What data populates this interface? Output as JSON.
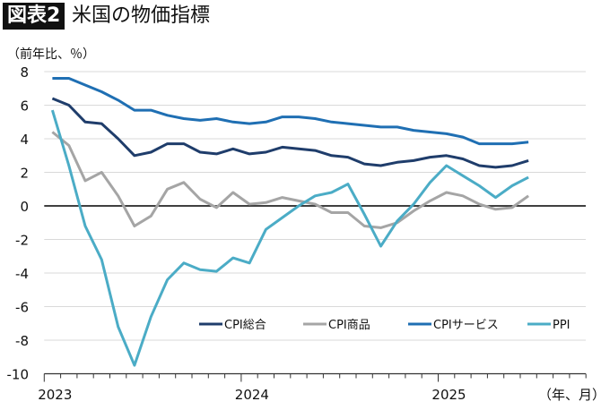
{
  "header": {
    "badge": "図表2",
    "title": "米国の物価指標"
  },
  "chart_data": {
    "type": "line",
    "ylabel": "（前年比、％）",
    "xlabel": "（年、月）",
    "ylim": [
      -10,
      8
    ],
    "yticks": [
      8,
      6,
      4,
      2,
      0,
      -2,
      -4,
      -6,
      -8,
      -10
    ],
    "xtick_labels": [
      "2023",
      "2024",
      "2025"
    ],
    "x_start": "2023-01",
    "x_axis_end": "2025-09",
    "x": [
      "2023-01",
      "2023-02",
      "2023-03",
      "2023-04",
      "2023-05",
      "2023-06",
      "2023-07",
      "2023-08",
      "2023-09",
      "2023-10",
      "2023-11",
      "2023-12",
      "2024-01",
      "2024-02",
      "2024-03",
      "2024-04",
      "2024-05",
      "2024-06",
      "2024-07",
      "2024-08",
      "2024-09",
      "2024-10",
      "2024-11",
      "2024-12",
      "2025-01",
      "2025-02",
      "2025-03",
      "2025-04",
      "2025-05",
      "2025-06"
    ],
    "grid": true,
    "legend_position": "bottom-right",
    "series": [
      {
        "name": "CPI総合",
        "color": "#1f3d6b",
        "values": [
          6.4,
          6.0,
          5.0,
          4.9,
          4.0,
          3.0,
          3.2,
          3.7,
          3.7,
          3.2,
          3.1,
          3.4,
          3.1,
          3.2,
          3.5,
          3.4,
          3.3,
          3.0,
          2.9,
          2.5,
          2.4,
          2.6,
          2.7,
          2.9,
          3.0,
          2.8,
          2.4,
          2.3,
          2.4,
          2.7
        ]
      },
      {
        "name": "CPI商品",
        "color": "#a5a5a5",
        "values": [
          4.4,
          3.6,
          1.5,
          2.0,
          0.6,
          -1.2,
          -0.6,
          1.0,
          1.4,
          0.4,
          -0.1,
          0.8,
          0.1,
          0.2,
          0.5,
          0.3,
          0.1,
          -0.4,
          -0.4,
          -1.2,
          -1.3,
          -1.0,
          -0.3,
          0.3,
          0.8,
          0.6,
          0.1,
          -0.2,
          -0.1,
          0.6
        ]
      },
      {
        "name": "CPIサービス",
        "color": "#1f6fb3",
        "values": [
          7.6,
          7.6,
          7.2,
          6.8,
          6.3,
          5.7,
          5.7,
          5.4,
          5.2,
          5.1,
          5.2,
          5.0,
          4.9,
          5.0,
          5.3,
          5.3,
          5.2,
          5.0,
          4.9,
          4.8,
          4.7,
          4.7,
          4.5,
          4.4,
          4.3,
          4.1,
          3.7,
          3.7,
          3.7,
          3.8
        ]
      },
      {
        "name": "PPI",
        "color": "#4bacc6",
        "values": [
          5.7,
          2.4,
          -1.2,
          -3.2,
          -7.2,
          -9.5,
          -6.6,
          -4.4,
          -3.4,
          -3.8,
          -3.9,
          -3.1,
          -3.4,
          -1.4,
          -0.7,
          0.0,
          0.6,
          0.8,
          1.3,
          -0.5,
          -2.4,
          -0.9,
          0.1,
          1.4,
          2.4,
          1.8,
          1.2,
          0.5,
          1.2,
          1.7
        ]
      }
    ]
  }
}
